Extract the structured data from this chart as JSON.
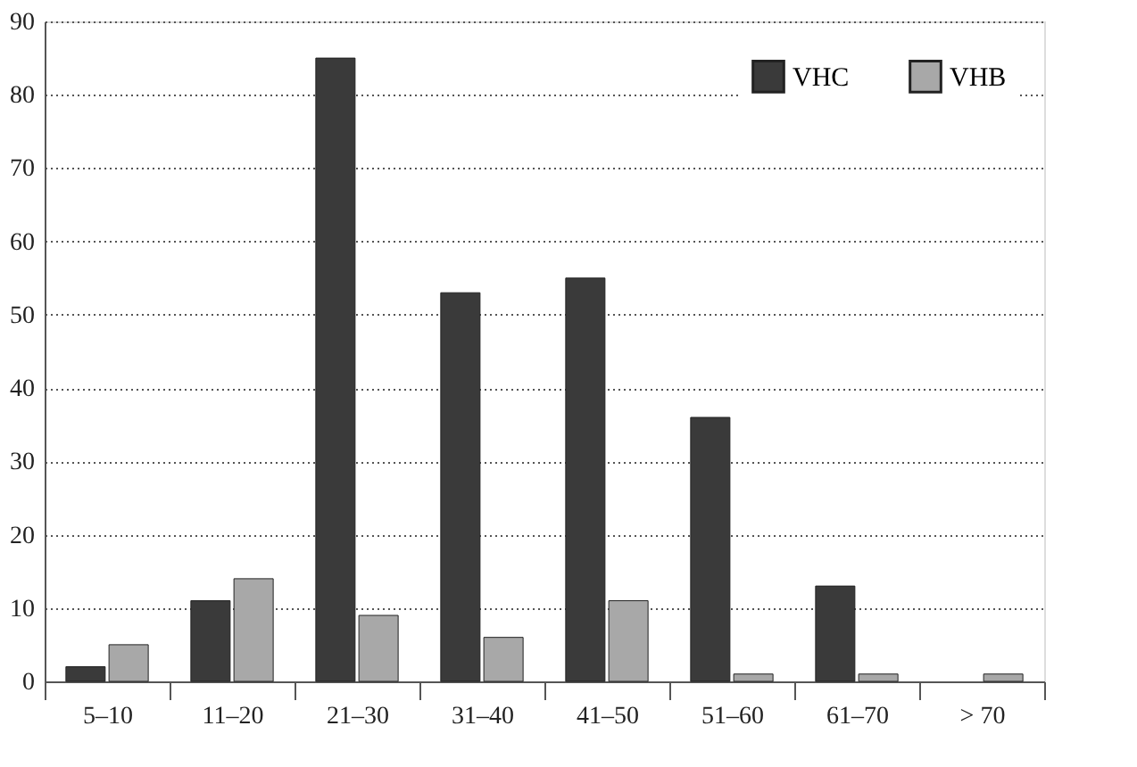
{
  "chart_data": {
    "type": "bar",
    "categories": [
      "5–10",
      "11–20",
      "21–30",
      "31–40",
      "41–50",
      "51–60",
      "61–70",
      "> 70"
    ],
    "series": [
      {
        "name": "VHC",
        "color": "#3a3a3a",
        "values": [
          2,
          11,
          85,
          53,
          55,
          36,
          13,
          null
        ]
      },
      {
        "name": "VHB",
        "color": "#a8a8a8",
        "values": [
          5,
          14,
          9,
          6,
          11,
          1,
          1,
          1
        ]
      }
    ],
    "ylim": [
      0,
      90
    ],
    "yticks": [
      0,
      10,
      20,
      30,
      40,
      50,
      60,
      70,
      80,
      90
    ],
    "grid": "y",
    "legend": "top right"
  }
}
